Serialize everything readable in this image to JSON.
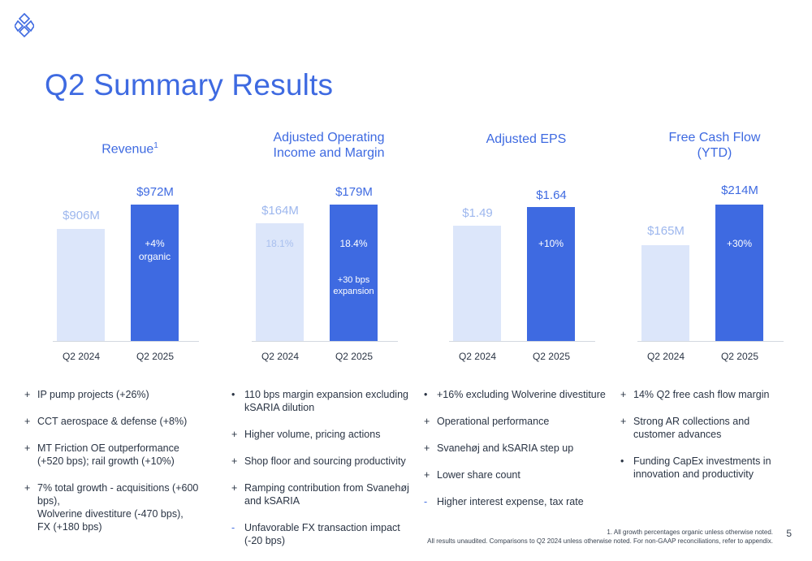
{
  "title": "Q2 Summary Results",
  "colors": {
    "accent": "#3e6ae1",
    "prior": "#dce6fa"
  },
  "panels": [
    {
      "title": "Revenue",
      "title_sup": "1",
      "x_labels": [
        "Q2 2024",
        "Q2 2025"
      ],
      "prev": {
        "value": "$906M",
        "note": "",
        "note2": ""
      },
      "curr": {
        "value": "$972M",
        "note": "+4%\norganic",
        "note2": ""
      },
      "bullets": [
        {
          "mark": "+",
          "text": "IP pump projects (+26%)"
        },
        {
          "mark": "+",
          "text": "CCT aerospace & defense (+8%)"
        },
        {
          "mark": "+",
          "text": "MT Friction OE outperformance\n(+520 bps); rail growth (+10%)"
        },
        {
          "mark": "+",
          "text": "7% total growth - acquisitions (+600 bps),\nWolverine divestiture (-470 bps),\nFX (+180 bps)"
        }
      ]
    },
    {
      "title": "Adjusted Operating\nIncome and Margin",
      "title_sup": "",
      "x_labels": [
        "Q2 2024",
        "Q2 2025"
      ],
      "prev": {
        "value": "$164M",
        "note": "18.1%",
        "note2": ""
      },
      "curr": {
        "value": "$179M",
        "note": "18.4%",
        "note2": "+30 bps\nexpansion"
      },
      "bullets": [
        {
          "mark": "•",
          "text": "110 bps margin expansion excluding\nkSARIA dilution"
        },
        {
          "mark": "+",
          "text": "Higher volume, pricing actions"
        },
        {
          "mark": "+",
          "text": "Shop floor and sourcing productivity"
        },
        {
          "mark": "+",
          "text": "Ramping contribution from Svanehøj\nand kSARIA"
        },
        {
          "mark": "-",
          "text": "Unfavorable FX transaction impact\n(-20 bps)"
        }
      ]
    },
    {
      "title": "Adjusted EPS",
      "title_sup": "",
      "x_labels": [
        "Q2 2024",
        "Q2 2025"
      ],
      "prev": {
        "value": "$1.49",
        "note": "",
        "note2": ""
      },
      "curr": {
        "value": "$1.64",
        "note": "+10%",
        "note2": ""
      },
      "bullets": [
        {
          "mark": "•",
          "text": "+16% excluding Wolverine divestiture"
        },
        {
          "mark": "+",
          "text": "Operational performance"
        },
        {
          "mark": "+",
          "text": "Svanehøj and kSARIA step up"
        },
        {
          "mark": "+",
          "text": "Lower share count"
        },
        {
          "mark": "-",
          "text": "Higher interest expense, tax rate"
        }
      ]
    },
    {
      "title": "Free Cash Flow\n(YTD)",
      "title_sup": "",
      "x_labels": [
        "Q2 2024",
        "Q2 2025"
      ],
      "prev": {
        "value": "$165M",
        "note": "",
        "note2": ""
      },
      "curr": {
        "value": "$214M",
        "note": "+30%",
        "note2": ""
      },
      "bullets": [
        {
          "mark": "+",
          "text": "14% Q2 free cash flow margin"
        },
        {
          "mark": "+",
          "text": "Strong AR collections and\ncustomer advances"
        },
        {
          "mark": "•",
          "text": "Funding CapEx investments in\ninnovation and productivity"
        }
      ]
    }
  ],
  "footnote": {
    "line1": "1. All growth percentages organic unless otherwise noted.",
    "line2": "All results unaudited. Comparisons to Q2 2024 unless otherwise noted. For non-GAAP reconciliations, refer to appendix."
  },
  "page_number": "5",
  "chart_data": [
    {
      "type": "bar",
      "title": "Revenue",
      "categories": [
        "Q2 2024",
        "Q2 2025"
      ],
      "values": [
        906,
        972
      ],
      "ylabel": ""
    },
    {
      "type": "bar",
      "title": "Adjusted Operating Income and Margin",
      "categories": [
        "Q2 2024",
        "Q2 2025"
      ],
      "values": [
        164,
        179
      ],
      "margin_pct": [
        18.1,
        18.4
      ]
    },
    {
      "type": "bar",
      "title": "Adjusted EPS",
      "categories": [
        "Q2 2024",
        "Q2 2025"
      ],
      "values": [
        1.49,
        1.64
      ]
    },
    {
      "type": "bar",
      "title": "Free Cash Flow (YTD)",
      "categories": [
        "Q2 2024",
        "Q2 2025"
      ],
      "values": [
        165,
        214
      ]
    }
  ]
}
